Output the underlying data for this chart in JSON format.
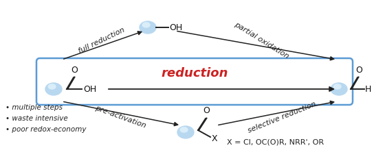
{
  "bg_color": "#ffffff",
  "box_color": "#5b9bd5",
  "arrow_color": "#222222",
  "reduction_text": "reduction",
  "reduction_color": "#cc2222",
  "bullet_texts": [
    "• multiple steps",
    "• waste intensive",
    "• poor redox-economy"
  ],
  "xeq_text": "X = Cl, OC(O)R, NRR', OR",
  "label_full_reduction": "full reduction",
  "label_partial_oxidation": "partial oxidation",
  "label_pre_activation": "pre-activation",
  "label_selective_reduction": "selective reduction",
  "blob_color": "#b8d8f0",
  "blob_highlight": "#daeefa"
}
